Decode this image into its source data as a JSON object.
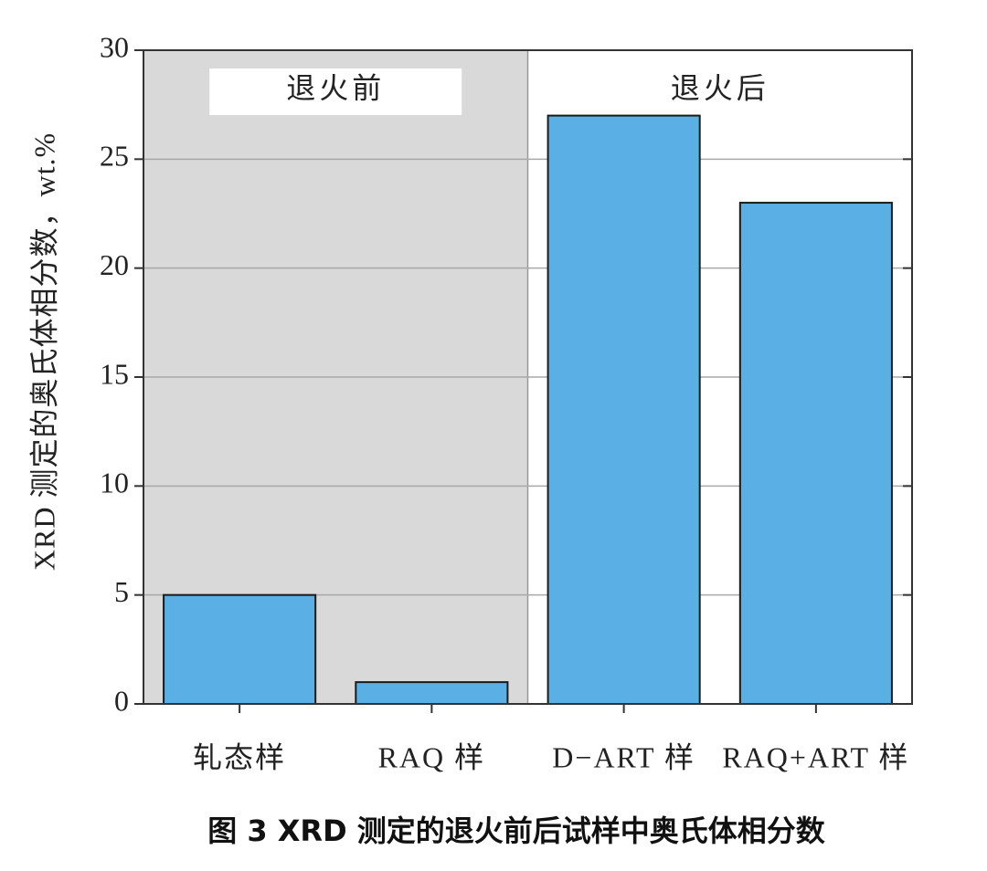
{
  "chart_data": {
    "type": "bar",
    "y_label": "XRD 测定的奥氏体相分数，wt.%",
    "caption": "图 3 XRD 测定的退火前后试样中奥氏体相分数",
    "annotations": [
      "退火前",
      "退火后"
    ],
    "categories": [
      "轧态样",
      "RAQ 样",
      "D−ART 样",
      "RAQ+ART 样"
    ],
    "values": [
      5,
      1,
      27,
      23
    ],
    "color": "#5ab0e4",
    "ylim": [
      0,
      30
    ],
    "yticks": [
      0,
      5,
      10,
      15,
      20,
      25,
      30
    ],
    "grid": true
  }
}
